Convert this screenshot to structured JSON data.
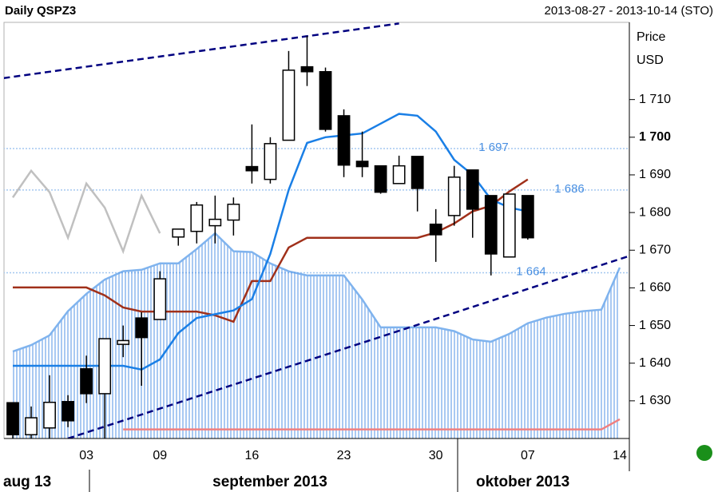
{
  "chart_data": {
    "type": "candlestick",
    "title": "Daily QSPZ3",
    "subtitle": "2013-08-27 - 2013-10-14 (STO)",
    "ylabel": "Price",
    "yunit": "USD",
    "period_labels": [
      "aug 13",
      "september 2013",
      "oktober 2013"
    ],
    "categories": [
      null,
      null,
      null,
      null,
      "03",
      null,
      null,
      null,
      "09",
      null,
      null,
      null,
      null,
      "16",
      null,
      null,
      null,
      null,
      "23",
      null,
      null,
      null,
      null,
      "30",
      null,
      null,
      null,
      null,
      "07",
      null,
      null,
      null,
      null,
      "14"
    ],
    "candles": {
      "open": [
        1629.5,
        1621,
        1622.8,
        1629.8,
        1638.5,
        1631.9,
        1645,
        1652,
        1651.6,
        1673.5,
        1675,
        1676.5,
        1678,
        1692.2,
        1688.8,
        1699.2,
        1718.7,
        1717.4,
        1705.7,
        1693.6,
        1692.4,
        1687.7,
        1694.9,
        1676.9,
        1679.2,
        1691.3,
        1684.5,
        1668.2,
        1684.5,
        null,
        null,
        null,
        null,
        null
      ],
      "high": [
        1629.5,
        1628.5,
        1636.8,
        1631.5,
        1642,
        1646.5,
        1650,
        1653.5,
        1664.4,
        1675.6,
        1682.8,
        1684.5,
        1684,
        1703.4,
        1700,
        1722.9,
        1726.9,
        1718.5,
        1707.4,
        1701.5,
        1692.4,
        1695.1,
        1694.9,
        1680.9,
        1692.4,
        1691.3,
        1684.5,
        1684.9,
        1684.5,
        null,
        null,
        null,
        null,
        null
      ],
      "low": [
        1620,
        1620,
        1620,
        1623,
        1629.4,
        1620,
        1641.6,
        1634,
        1651.6,
        1671.2,
        1671.8,
        1671.8,
        1673.9,
        1687.7,
        1687.7,
        1699.2,
        1713.6,
        1701.5,
        1689.4,
        1689.4,
        1685,
        1687.7,
        1680.3,
        1666.9,
        1676.5,
        1673.3,
        1663.3,
        1668.2,
        1672.8,
        null,
        null,
        null,
        null,
        null
      ],
      "close": [
        1621,
        1625.5,
        1629.6,
        1624.7,
        1631.9,
        1646.5,
        1646,
        1646.8,
        1662.4,
        1675.6,
        1682,
        1678.2,
        1682.2,
        1691.1,
        1698.3,
        1717.8,
        1717.4,
        1702.1,
        1692.6,
        1692.2,
        1685.4,
        1692.4,
        1686.4,
        1674.1,
        1689.4,
        1680.9,
        1669,
        1684.9,
        1673.3,
        null,
        null,
        null,
        null,
        null
      ]
    },
    "up_color": "#ffffff",
    "down_color": "#000000",
    "lines": [
      {
        "color": "#c0c0c0",
        "values": [
          1684,
          1691.1,
          1685.4,
          1673.3,
          1687.7,
          1681.3,
          1669.7,
          1684.5,
          1674.5,
          null,
          null,
          null,
          null,
          null,
          null,
          null,
          null,
          null,
          null,
          null,
          null,
          null,
          null,
          null,
          null,
          null,
          null,
          null,
          null,
          null,
          null,
          null,
          null,
          null
        ]
      },
      {
        "color": "#a0301a",
        "values": [
          1660.1,
          1660.1,
          1660.1,
          1660.1,
          1660.1,
          1658,
          1654.8,
          1653.7,
          1653.7,
          1653.7,
          1653.7,
          1652.7,
          1651,
          1661.8,
          1661.8,
          1670.7,
          1673.3,
          1673.3,
          1673.3,
          1673.3,
          1673.3,
          1673.3,
          1673.3,
          1674.7,
          1677.1,
          1680.3,
          1681.8,
          1685.6,
          1688.8,
          null,
          null,
          null,
          null,
          null
        ]
      },
      {
        "color": "#1a7fe6",
        "values": [
          1639.3,
          1639.3,
          1639.3,
          1639.3,
          1639.3,
          1639.3,
          1639.3,
          1638.3,
          1641,
          1648,
          1652,
          1653,
          1654,
          1657,
          1669,
          1686,
          1698.5,
          1700,
          1700.5,
          1701,
          1703.6,
          1706.2,
          1705.7,
          1701.5,
          1694,
          1690,
          1683.5,
          1681.3,
          1680.3,
          null,
          null,
          null,
          null,
          null
        ]
      }
    ],
    "cloud": {
      "fill": "#a9c9f2",
      "upper": {
        "color": "#7fb3ee",
        "values": [
          1643.1,
          1644.8,
          1647.4,
          1653.8,
          1658.4,
          1662.2,
          1664.4,
          1664.8,
          1666.5,
          1666.5,
          1670.3,
          1674.5,
          1669.7,
          1669.5,
          1666.5,
          1664.4,
          1663.3,
          1663.3,
          1663.3,
          1656.9,
          1649.5,
          1649.5,
          1649.5,
          1649.5,
          1648.5,
          1646.3,
          1645.7,
          1647.8,
          1650.6,
          1652.1,
          1653.1,
          1653.8,
          1654.2,
          1665.4
        ]
      },
      "lower": {
        "color": "#f08080",
        "values": [
          null,
          null,
          null,
          null,
          null,
          null,
          1622.4,
          1622.4,
          1622.4,
          1622.4,
          1622.4,
          1622.4,
          1622.4,
          1622.4,
          1622.4,
          1622.4,
          1622.4,
          1622.4,
          1622.4,
          1622.4,
          1622.4,
          1622.4,
          1622.4,
          1622.4,
          1622.4,
          1622.4,
          1622.4,
          1622.4,
          1622.4,
          1622.4,
          1622.4,
          1622.4,
          1622.4,
          1625.1
        ]
      }
    },
    "trend_lines": [
      {
        "color": "#000080",
        "x": [
          -0.5,
          21
        ],
        "y": [
          1715.7,
          1730.2
        ]
      },
      {
        "color": "#000080",
        "x": [
          3,
          33.6
        ],
        "y": [
          1620,
          1668.6
        ]
      }
    ],
    "reference_lines": [
      {
        "value": 1697,
        "label": "1 697"
      },
      {
        "value": 1686,
        "label": "1 686"
      },
      {
        "value": 1664,
        "label": "1 664"
      }
    ],
    "reference_color": "#4a90e2",
    "ylim": [
      1620,
      1730.5
    ],
    "yticks": [
      {
        "value": 1630,
        "label": "1 630"
      },
      {
        "value": 1640,
        "label": "1 640"
      },
      {
        "value": 1650,
        "label": "1 650"
      },
      {
        "value": 1660,
        "label": "1 660"
      },
      {
        "value": 1670,
        "label": "1 670"
      },
      {
        "value": 1680,
        "label": "1 680"
      },
      {
        "value": 1690,
        "label": "1 690"
      },
      {
        "value": 1700,
        "label": "1 700",
        "bold": true
      },
      {
        "value": 1710,
        "label": "1 710"
      }
    ]
  }
}
